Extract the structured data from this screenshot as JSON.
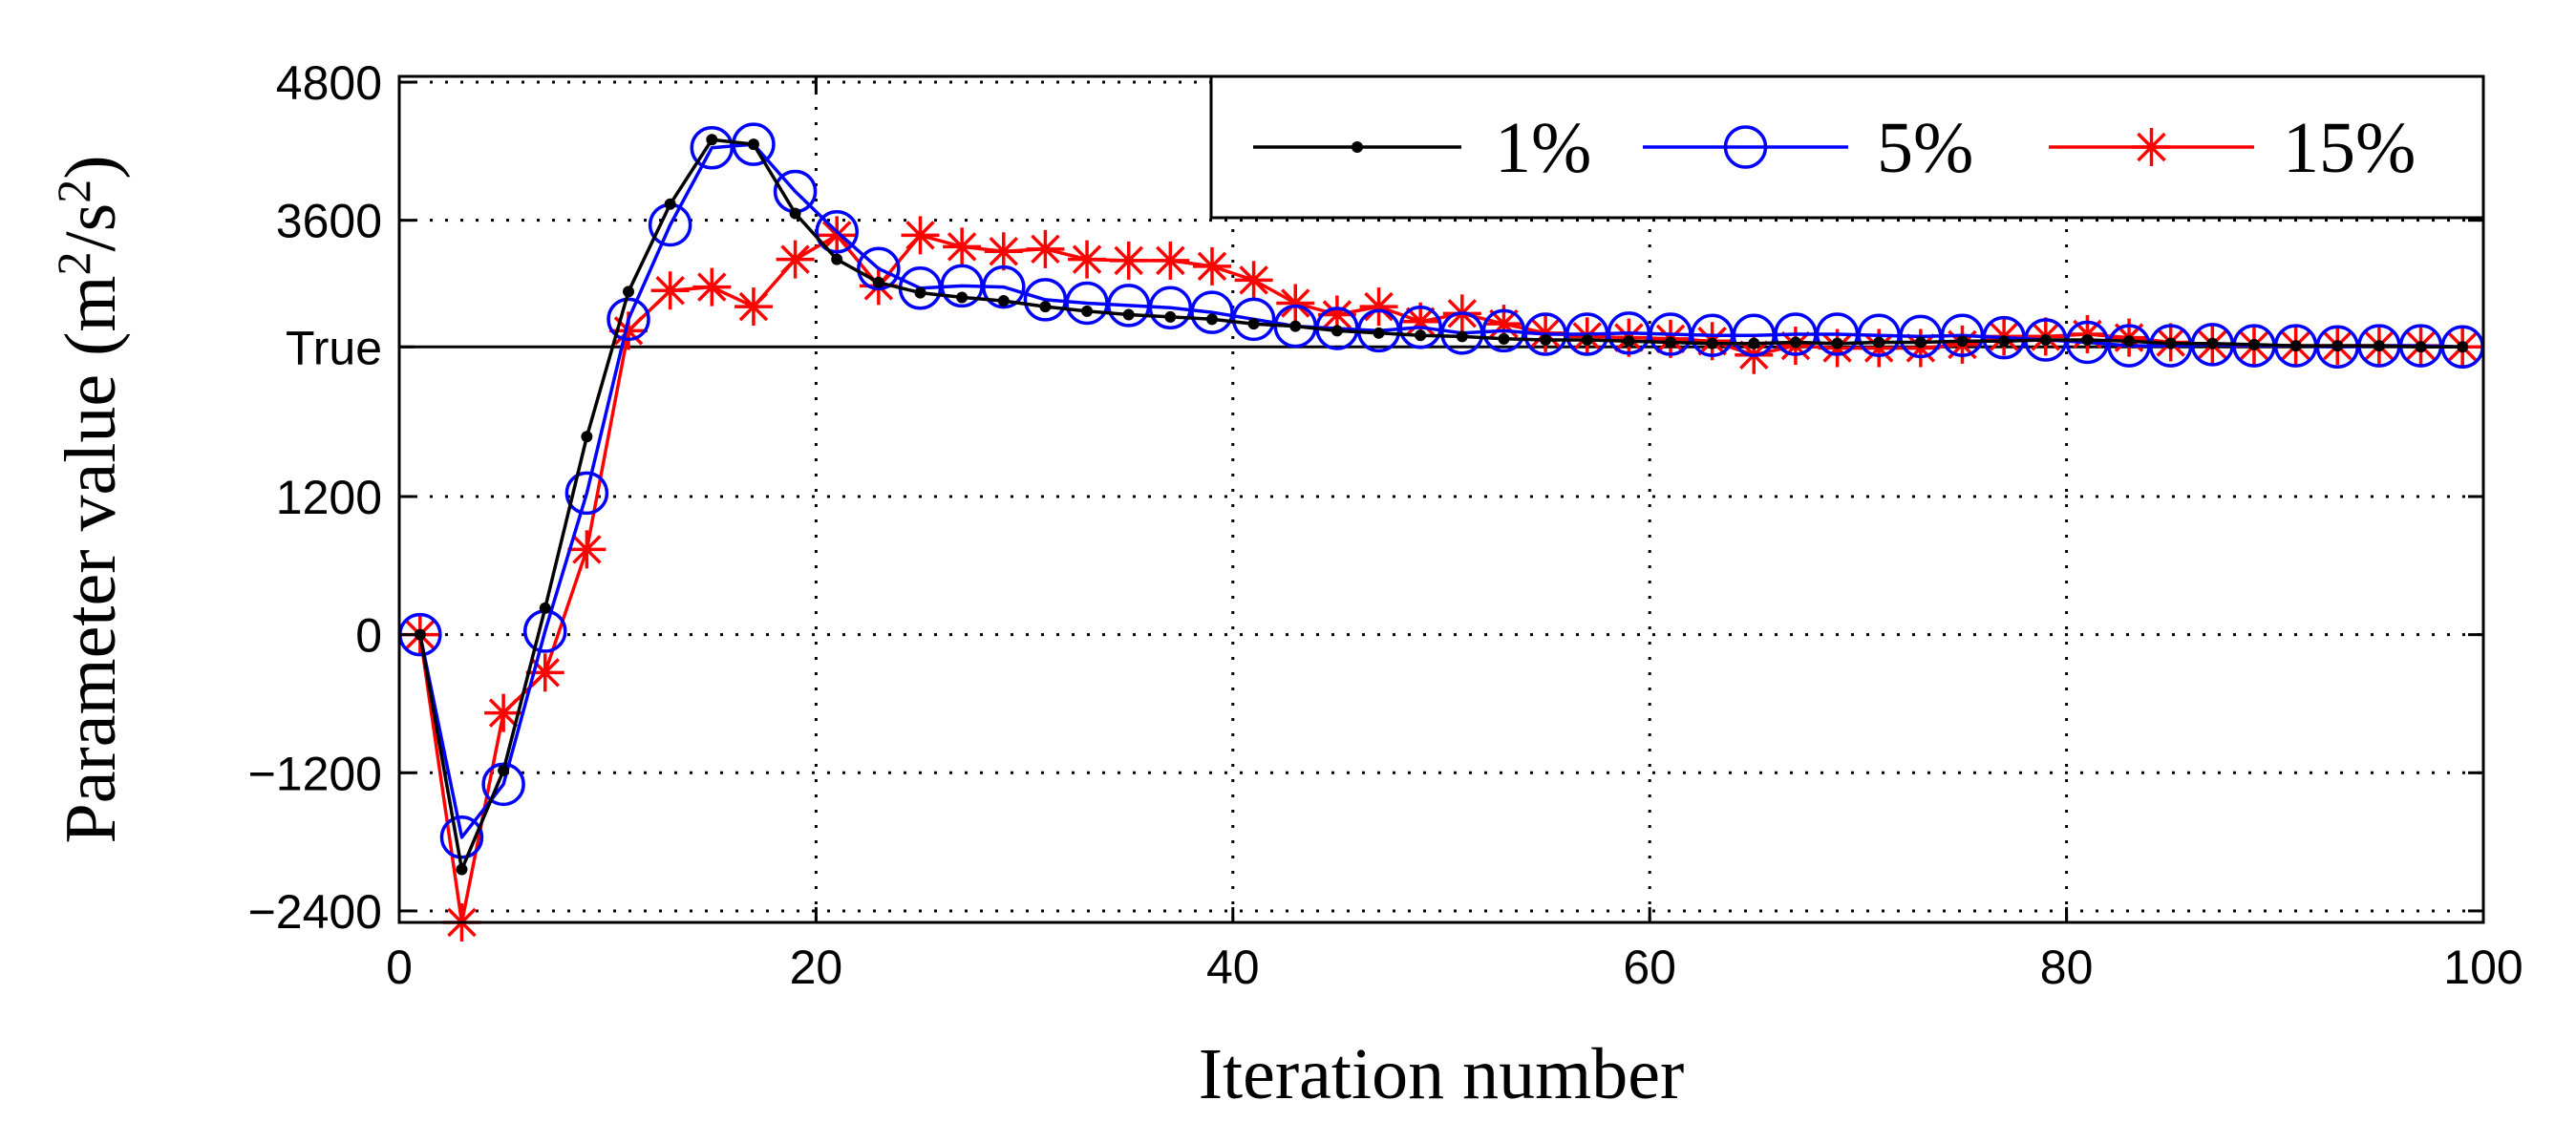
{
  "chart_data": {
    "type": "line",
    "title": "",
    "xlabel": "Iteration number",
    "ylabel_main": "Parameter value (m",
    "ylabel_sup1": "2",
    "ylabel_mid": "/s",
    "ylabel_sup2": "2",
    "ylabel_end": ")",
    "xlim": [
      0,
      100
    ],
    "ylim": [
      -2500,
      4850
    ],
    "xticks": [
      0,
      20,
      40,
      60,
      80,
      100
    ],
    "xtick_labels": [
      "0",
      "20",
      "40",
      "60",
      "80",
      "100"
    ],
    "yticks": [
      -2400,
      -1200,
      0,
      1200,
      3600,
      4800
    ],
    "ytick_labels": [
      "−2400",
      "−1200",
      "0",
      "1200",
      "3600",
      "4800"
    ],
    "true_value": 2500,
    "true_label": "True",
    "grid": "dotted",
    "legend_position": "top-right",
    "series": [
      {
        "name": "1%",
        "color": "#000000",
        "marker": "dot",
        "x": [
          1,
          3,
          5,
          7,
          9,
          11,
          13,
          15,
          17,
          19,
          21,
          23,
          25,
          27,
          29,
          31,
          33,
          35,
          37,
          39,
          41,
          43,
          45,
          47,
          49,
          51,
          53,
          55,
          57,
          59,
          61,
          63,
          65,
          67,
          69,
          71,
          73,
          75,
          77,
          79,
          81,
          83,
          85,
          87,
          89,
          91,
          93,
          95,
          97,
          99
        ],
        "y": [
          0,
          -2040,
          -1180,
          230,
          1720,
          2980,
          3740,
          4300,
          4260,
          3660,
          3260,
          3060,
          2970,
          2930,
          2900,
          2850,
          2810,
          2780,
          2760,
          2740,
          2700,
          2680,
          2640,
          2620,
          2600,
          2590,
          2570,
          2560,
          2560,
          2550,
          2540,
          2530,
          2530,
          2540,
          2530,
          2540,
          2540,
          2550,
          2550,
          2560,
          2560,
          2550,
          2530,
          2530,
          2520,
          2510,
          2510,
          2510,
          2500,
          2500
        ]
      },
      {
        "name": "5%",
        "color": "#0000ff",
        "marker": "circle",
        "x": [
          1,
          3,
          5,
          7,
          9,
          11,
          13,
          15,
          17,
          19,
          21,
          23,
          25,
          27,
          29,
          31,
          33,
          35,
          37,
          39,
          41,
          43,
          45,
          47,
          49,
          51,
          53,
          55,
          57,
          59,
          61,
          63,
          65,
          67,
          69,
          71,
          73,
          75,
          77,
          79,
          81,
          83,
          85,
          87,
          89,
          91,
          93,
          95,
          97,
          99
        ],
        "y": [
          0,
          -1760,
          -1300,
          30,
          1230,
          2740,
          3560,
          4230,
          4260,
          3850,
          3500,
          3180,
          3010,
          3030,
          3020,
          2910,
          2880,
          2860,
          2840,
          2800,
          2740,
          2680,
          2660,
          2640,
          2670,
          2620,
          2640,
          2610,
          2610,
          2620,
          2610,
          2600,
          2600,
          2610,
          2610,
          2600,
          2590,
          2600,
          2580,
          2560,
          2540,
          2510,
          2510,
          2520,
          2510,
          2510,
          2500,
          2510,
          2510,
          2500
        ]
      },
      {
        "name": "15%",
        "color": "#ff0000",
        "marker": "asterisk",
        "x": [
          1,
          3,
          5,
          7,
          9,
          11,
          13,
          15,
          17,
          19,
          21,
          23,
          25,
          27,
          29,
          31,
          33,
          35,
          37,
          39,
          41,
          43,
          45,
          47,
          49,
          51,
          53,
          55,
          57,
          59,
          61,
          63,
          65,
          67,
          69,
          71,
          73,
          75,
          77,
          79,
          81,
          83,
          85,
          87,
          89,
          91,
          93,
          95,
          97,
          99
        ],
        "y": [
          0,
          -2500,
          -680,
          -330,
          740,
          2640,
          2990,
          3020,
          2850,
          3260,
          3470,
          3030,
          3470,
          3370,
          3330,
          3350,
          3260,
          3250,
          3250,
          3200,
          3080,
          2880,
          2780,
          2850,
          2720,
          2790,
          2700,
          2620,
          2590,
          2580,
          2570,
          2550,
          2430,
          2510,
          2490,
          2490,
          2490,
          2520,
          2590,
          2590,
          2610,
          2580,
          2540,
          2520,
          2510,
          2510,
          2510,
          2510,
          2510,
          2500
        ]
      }
    ]
  }
}
